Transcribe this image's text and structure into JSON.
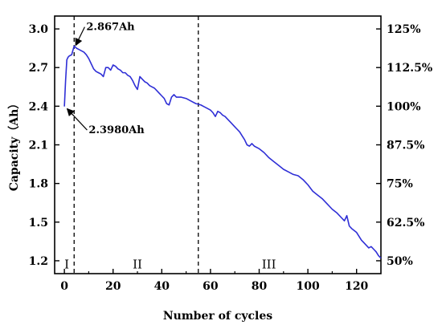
{
  "chart_data": {
    "type": "line",
    "xlabel": "Number of cycles",
    "ylabel": "Capacity（Ah）",
    "xlim": [
      -4,
      130
    ],
    "ylim": [
      1.1,
      3.1
    ],
    "x_ticks": [
      0,
      20,
      40,
      60,
      80,
      100,
      120
    ],
    "y_ticks": [
      1.2,
      1.5,
      1.8,
      2.1,
      2.4,
      2.7,
      3.0
    ],
    "y_tick_labels": [
      "1.2",
      "1.5",
      "1.8",
      "2.1",
      "2.4",
      "2.7",
      "3.0"
    ],
    "right_axis_ticks": [
      {
        "label": "50%",
        "y": 1.2
      },
      {
        "label": "62.5%",
        "y": 1.5
      },
      {
        "label": "75%",
        "y": 1.8
      },
      {
        "label": "87.5%",
        "y": 2.1
      },
      {
        "label": "100%",
        "y": 2.4
      },
      {
        "label": "112.5%",
        "y": 2.7
      },
      {
        "label": "125%",
        "y": 3.0
      }
    ],
    "vlines": [
      4,
      55
    ],
    "regions": [
      {
        "label": "I",
        "x": 1
      },
      {
        "label": "II",
        "x": 30
      },
      {
        "label": "III",
        "x": 84
      }
    ],
    "annotations": [
      {
        "text": "2.867Ah",
        "point": [
          4,
          2.867
        ],
        "text_pos": [
          9,
          2.99
        ]
      },
      {
        "text": "2.3980Ah",
        "point": [
          0.5,
          2.398
        ],
        "text_pos": [
          10,
          2.19
        ]
      }
    ],
    "series": [
      {
        "color": "#2f2fd6",
        "x": [
          0,
          0.5,
          1,
          1.5,
          2,
          3,
          4,
          5,
          6,
          7,
          8,
          9,
          10,
          11,
          12,
          13,
          14,
          15,
          16,
          17,
          18,
          19,
          20,
          21,
          22,
          23,
          24,
          25,
          26,
          27,
          28,
          29,
          30,
          31,
          32,
          33,
          34,
          35,
          36,
          37,
          38,
          39,
          40,
          41,
          42,
          43,
          44,
          45,
          46,
          48,
          50,
          52,
          54,
          56,
          58,
          60,
          61,
          62,
          63,
          64,
          65,
          66,
          67,
          68,
          69,
          70,
          71,
          72,
          73,
          74,
          75,
          76,
          77,
          78,
          80,
          82,
          84,
          86,
          88,
          90,
          92,
          94,
          96,
          98,
          100,
          102,
          104,
          106,
          108,
          110,
          112,
          114,
          115,
          116,
          117,
          118,
          120,
          122,
          123,
          124,
          125,
          126,
          127,
          128,
          129,
          130
        ],
        "y": [
          2.398,
          2.6,
          2.76,
          2.78,
          2.79,
          2.8,
          2.867,
          2.85,
          2.84,
          2.83,
          2.82,
          2.8,
          2.77,
          2.73,
          2.69,
          2.67,
          2.66,
          2.65,
          2.63,
          2.7,
          2.7,
          2.68,
          2.72,
          2.71,
          2.69,
          2.68,
          2.66,
          2.66,
          2.64,
          2.63,
          2.6,
          2.56,
          2.53,
          2.63,
          2.61,
          2.59,
          2.58,
          2.56,
          2.55,
          2.54,
          2.52,
          2.5,
          2.48,
          2.46,
          2.42,
          2.41,
          2.47,
          2.49,
          2.47,
          2.47,
          2.46,
          2.44,
          2.42,
          2.41,
          2.39,
          2.37,
          2.35,
          2.32,
          2.36,
          2.35,
          2.33,
          2.32,
          2.3,
          2.28,
          2.26,
          2.24,
          2.22,
          2.2,
          2.17,
          2.14,
          2.1,
          2.09,
          2.11,
          2.09,
          2.07,
          2.04,
          2.0,
          1.97,
          1.94,
          1.91,
          1.89,
          1.87,
          1.86,
          1.83,
          1.79,
          1.74,
          1.71,
          1.68,
          1.64,
          1.6,
          1.57,
          1.53,
          1.51,
          1.55,
          1.47,
          1.45,
          1.42,
          1.36,
          1.34,
          1.32,
          1.3,
          1.31,
          1.29,
          1.27,
          1.24,
          1.22
        ]
      }
    ]
  }
}
